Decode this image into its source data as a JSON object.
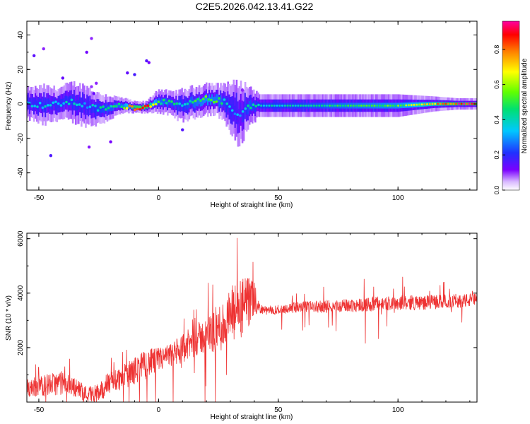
{
  "title": "C2E5.2026.042.13.41.G22",
  "colors": {
    "series": "#ee3333",
    "axis": "#000000"
  },
  "chart_data": [
    {
      "type": "heatmap",
      "xlabel": "Height of straight line (km)",
      "ylabel": "Frequency (Hz)",
      "xlim": [
        -55,
        133
      ],
      "ylim": [
        -50,
        48
      ],
      "xticks": [
        -50,
        0,
        50,
        100
      ],
      "yticks": [
        -40,
        -20,
        0,
        20,
        40
      ],
      "grid": false,
      "colorbar": {
        "label": "Normalized spectral amplitude",
        "range": [
          0.0,
          0.96
        ],
        "ticks": [
          0.0,
          0.2,
          0.4,
          0.6,
          0.8
        ],
        "colormap": "rainbow"
      },
      "ridge": {
        "x": [
          -53,
          -48,
          -42,
          -36,
          -30,
          -25,
          -20,
          -15,
          -10,
          -5,
          0,
          5,
          10,
          15,
          20,
          25,
          28,
          31,
          34,
          38,
          42,
          60,
          80,
          100,
          115,
          125,
          133
        ],
        "center_hz": [
          0,
          -1,
          0,
          1,
          -1,
          -3,
          -2,
          -1,
          -2,
          -2,
          2,
          0,
          -1,
          1,
          3,
          2,
          1,
          -4,
          -6,
          -1,
          -1,
          -1,
          -1,
          -1,
          0,
          0,
          0
        ],
        "amplitude": [
          0.35,
          0.38,
          0.36,
          0.4,
          0.33,
          0.42,
          0.45,
          0.5,
          0.9,
          0.95,
          0.5,
          0.45,
          0.4,
          0.48,
          0.55,
          0.5,
          0.4,
          0.35,
          0.3,
          0.45,
          0.4,
          0.42,
          0.5,
          0.55,
          0.75,
          0.92,
          0.96
        ],
        "halfwidth_hz": [
          4,
          5,
          4,
          5,
          5,
          4,
          3,
          2,
          1.5,
          1.5,
          3,
          3,
          4,
          4,
          4,
          4,
          5,
          7,
          8,
          5,
          3,
          3,
          3,
          3,
          2,
          1.5,
          1.5
        ]
      },
      "outliers": [
        {
          "x": -28,
          "hz": 10
        },
        {
          "x": -27,
          "hz": 6
        },
        {
          "x": -26,
          "hz": 12
        },
        {
          "x": -30,
          "hz": 30
        },
        {
          "x": -28,
          "hz": 38
        },
        {
          "x": -29,
          "hz": -25
        },
        {
          "x": -13,
          "hz": 18
        },
        {
          "x": -10,
          "hz": 17
        },
        {
          "x": -5,
          "hz": 25
        },
        {
          "x": -4,
          "hz": 24
        },
        {
          "x": -52,
          "hz": 28
        },
        {
          "x": -48,
          "hz": 32
        },
        {
          "x": -40,
          "hz": 15
        },
        {
          "x": -45,
          "hz": -30
        },
        {
          "x": -20,
          "hz": -22
        },
        {
          "x": 10,
          "hz": -15
        },
        {
          "x": 33,
          "hz": -10
        },
        {
          "x": 35,
          "hz": 8
        }
      ]
    },
    {
      "type": "line",
      "xlabel": "Height of straight line (km)",
      "ylabel": "SNR (10 * v/v)",
      "xlim": [
        -55,
        133
      ],
      "ylim": [
        0,
        6200
      ],
      "xticks": [
        -50,
        0,
        50,
        100
      ],
      "yticks": [
        2000,
        4000,
        6000
      ],
      "grid": false,
      "series": [
        {
          "x": [
            -55,
            -50,
            -45,
            -40,
            -35,
            -30,
            -25,
            -20,
            -15,
            -10,
            -5,
            0,
            5,
            10,
            15,
            20,
            25,
            28,
            31,
            34,
            37,
            40,
            42,
            45,
            50,
            60,
            70,
            80,
            90,
            100,
            110,
            120,
            133
          ],
          "values": [
            500,
            600,
            650,
            700,
            550,
            300,
            350,
            750,
            900,
            1150,
            1400,
            1550,
            1700,
            1950,
            2250,
            2450,
            2700,
            2900,
            3200,
            3400,
            3600,
            3700,
            3450,
            3350,
            3400,
            3500,
            3500,
            3550,
            3600,
            3650,
            3650,
            3700,
            3750
          ],
          "noise": [
            350,
            400,
            400,
            450,
            350,
            300,
            350,
            450,
            450,
            500,
            550,
            450,
            450,
            550,
            600,
            650,
            900,
            1000,
            1100,
            1200,
            1000,
            700,
            200,
            150,
            180,
            200,
            230,
            250,
            280,
            280,
            270,
            260,
            260
          ]
        }
      ]
    }
  ]
}
